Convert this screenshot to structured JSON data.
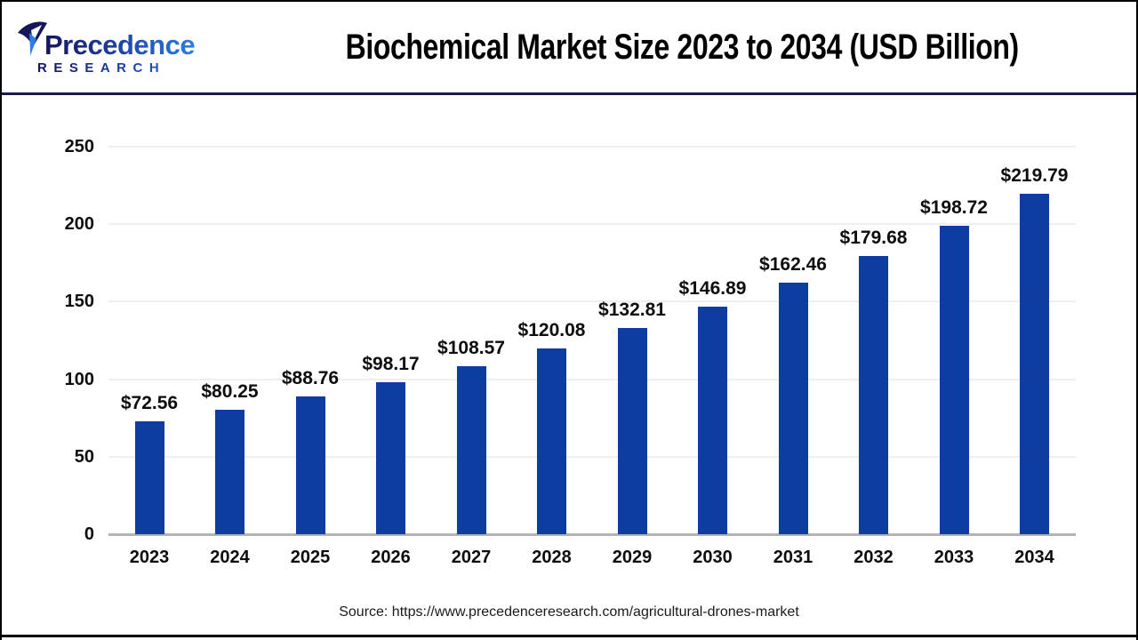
{
  "header": {
    "logo_text": "Precedence",
    "logo_subtext": "RESEARCH",
    "title": "Biochemical Market Size 2023 to 2034 (USD Billion)"
  },
  "chart_data": {
    "type": "bar",
    "title": "Biochemical Market Size 2023 to 2034 (USD Billion)",
    "categories": [
      "2023",
      "2024",
      "2025",
      "2026",
      "2027",
      "2028",
      "2029",
      "2030",
      "2031",
      "2032",
      "2033",
      "2034"
    ],
    "values": [
      72.56,
      80.25,
      88.76,
      98.17,
      108.57,
      120.08,
      132.81,
      146.89,
      162.46,
      179.68,
      198.72,
      219.79
    ],
    "value_labels": [
      "$72.56",
      "$80.25",
      "$88.76",
      "$98.17",
      "$108.57",
      "$120.08",
      "$132.81",
      "$146.89",
      "$162.46",
      "$179.68",
      "$198.72",
      "$219.79"
    ],
    "xlabel": "",
    "ylabel": "",
    "ylim": [
      0,
      250
    ],
    "yticks": [
      0,
      50,
      100,
      150,
      200,
      250
    ],
    "grid": "horizontal",
    "legend_position": "none"
  },
  "colors": {
    "bar": "#0d3da0",
    "header_rule": "#191950",
    "gridline": "#efefef",
    "axis": "#b3b3b3",
    "logo_dark": "#15155a",
    "logo_blue": "#2e7de2"
  },
  "footer": {
    "source": "Source: https://www.precedenceresearch.com/agricultural-drones-market"
  }
}
